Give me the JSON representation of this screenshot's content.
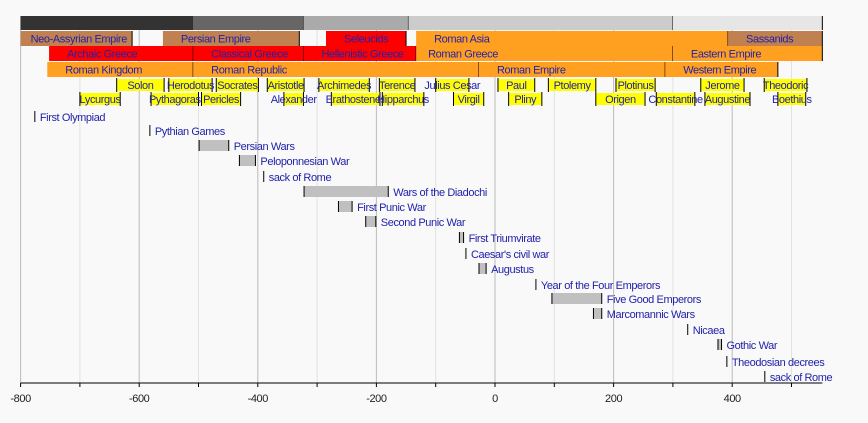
{
  "chart_data": {
    "type": "timeline",
    "xlim": [
      -800,
      552
    ],
    "grid": true,
    "xticks": [
      -800,
      -600,
      -400,
      -200,
      0,
      200,
      400
    ],
    "colors": {
      "label": "#2222aa",
      "person": "#ffff00",
      "event": "#c0c0c0",
      "orange": "#ffa020",
      "brown": "#c08050",
      "red": "#ff0000"
    },
    "eras": [
      {
        "start": -800,
        "end": -510,
        "color": "#333333"
      },
      {
        "start": -510,
        "end": -323,
        "color": "#666666"
      },
      {
        "start": -323,
        "end": -146,
        "color": "#aaaaaa"
      },
      {
        "start": -146,
        "end": 300,
        "color": "#cccccc"
      },
      {
        "start": 300,
        "end": 552,
        "color": "#e6e6e6"
      }
    ],
    "bands": [
      {
        "row": 1,
        "label": "Neo-Assyrian Empire",
        "start": -800,
        "end": -612,
        "color": "#c08050",
        "pad": 10
      },
      {
        "row": 1,
        "label": "Persian Empire",
        "start": -560,
        "end": -330,
        "color": "#c08050"
      },
      {
        "row": 1,
        "label": "Seleucids",
        "start": -285,
        "end": -150,
        "color": "#ff0000"
      },
      {
        "row": 1,
        "label": "Roman Asia",
        "start": -133,
        "end": 393,
        "color": "#ffa020"
      },
      {
        "row": 1,
        "label": "Sassanids",
        "start": 393,
        "end": 552,
        "color": "#c08050"
      },
      {
        "row": 2,
        "label": "Archaic Greece",
        "start": -752,
        "end": -509,
        "color": "#ff0000"
      },
      {
        "row": 2,
        "label": "Classical Greece",
        "start": -509,
        "end": -323,
        "color": "#ff0000"
      },
      {
        "row": 2,
        "label": "Hellenistic Greece",
        "start": -323,
        "end": -133,
        "color": "#ff0000"
      },
      {
        "row": 2,
        "label": "Roman Greece",
        "start": -133,
        "end": 300,
        "color": "#ffa020",
        "pad": 12
      },
      {
        "row": 2,
        "label": "Eastern Empire",
        "start": 300,
        "end": 552,
        "color": "#ffa020"
      },
      {
        "row": 3,
        "label": "Roman Kingdom",
        "start": -755,
        "end": -509,
        "color": "#ffa020"
      },
      {
        "row": 3,
        "label": "Roman Republic",
        "start": -509,
        "end": -27,
        "color": "#ffa020"
      },
      {
        "row": 3,
        "label": "Roman Empire",
        "start": -27,
        "end": 287,
        "color": "#ffa020"
      },
      {
        "row": 3,
        "label": "Western Empire",
        "start": 287,
        "end": 477,
        "color": "#ffa020"
      }
    ],
    "people": [
      {
        "row": 4,
        "label": "Solon",
        "start": -638,
        "end": -558
      },
      {
        "row": 4,
        "label": "Herodotus",
        "start": -550,
        "end": -477
      },
      {
        "row": 4,
        "label": "Socrates",
        "start": -470,
        "end": -399
      },
      {
        "row": 4,
        "label": "Aristotle",
        "start": -384,
        "end": -322
      },
      {
        "row": 4,
        "label": "Archimedes",
        "start": -297,
        "end": -212
      },
      {
        "row": 4,
        "label": "Terence",
        "start": -195,
        "end": -135
      },
      {
        "row": 4,
        "label": "Julius Cesar",
        "start": -100,
        "end": -44
      },
      {
        "row": 4,
        "label": "Paul",
        "start": 5,
        "end": 67
      },
      {
        "row": 4,
        "label": "Ptolemy",
        "start": 90,
        "end": 170
      },
      {
        "row": 4,
        "label": "Plotinus",
        "start": 204,
        "end": 270
      },
      {
        "row": 4,
        "label": "Jerome",
        "start": 347,
        "end": 420
      },
      {
        "row": 4,
        "label": "Theodoric",
        "start": 454,
        "end": 526
      },
      {
        "row": 5,
        "label": "Lycurgus",
        "start": -700,
        "end": -632
      },
      {
        "row": 5,
        "label": "Pythagoras",
        "start": -580,
        "end": -500
      },
      {
        "row": 5,
        "label": "Pericles",
        "start": -495,
        "end": -429
      },
      {
        "row": 5,
        "label": "Alexander",
        "start": -356,
        "end": -323
      },
      {
        "row": 5,
        "label": "Erathostenes",
        "start": -276,
        "end": -194
      },
      {
        "row": 5,
        "label": "Hipparchus",
        "start": -190,
        "end": -120
      },
      {
        "row": 5,
        "label": "Virgil",
        "start": -70,
        "end": -19
      },
      {
        "row": 5,
        "label": "Pliny",
        "start": 23,
        "end": 79
      },
      {
        "row": 5,
        "label": "Origen",
        "start": 170,
        "end": 253
      },
      {
        "row": 5,
        "label": "Constantine",
        "start": 272,
        "end": 337
      },
      {
        "row": 5,
        "label": "Augustine",
        "start": 354,
        "end": 430
      },
      {
        "row": 5,
        "label": "Boethius",
        "start": 477,
        "end": 524
      }
    ],
    "events": [
      {
        "label": "First Olympiad",
        "start": -776,
        "end": -776
      },
      {
        "label": "Pythian Games",
        "start": -582,
        "end": -582
      },
      {
        "label": "Persian Wars",
        "start": -499,
        "end": -449
      },
      {
        "label": "Peloponnesian War",
        "start": -431,
        "end": -404
      },
      {
        "label": "sack of Rome",
        "start": -390,
        "end": -390
      },
      {
        "label": "Wars of the Diadochi",
        "start": -322,
        "end": -180
      },
      {
        "label": "First Punic War",
        "start": -264,
        "end": -241
      },
      {
        "label": "Second Punic War",
        "start": -218,
        "end": -201
      },
      {
        "label": "First Triumvirate",
        "start": -60,
        "end": -53
      },
      {
        "label": "Caesar's civil war",
        "start": -49,
        "end": -49
      },
      {
        "label": "Augustus",
        "start": -27,
        "end": -15
      },
      {
        "label": "Year of the Four Emperors",
        "start": 69,
        "end": 69
      },
      {
        "label": "Five Good Emperors",
        "start": 96,
        "end": 180
      },
      {
        "label": "Marcomannic Wars",
        "start": 166,
        "end": 180
      },
      {
        "label": "Nicaea",
        "start": 325,
        "end": 325
      },
      {
        "label": "Gothic War",
        "start": 376,
        "end": 382
      },
      {
        "label": "Theodosian decrees",
        "start": 391,
        "end": 391
      },
      {
        "label": "sack of Rome",
        "start": 455,
        "end": 455
      }
    ]
  }
}
